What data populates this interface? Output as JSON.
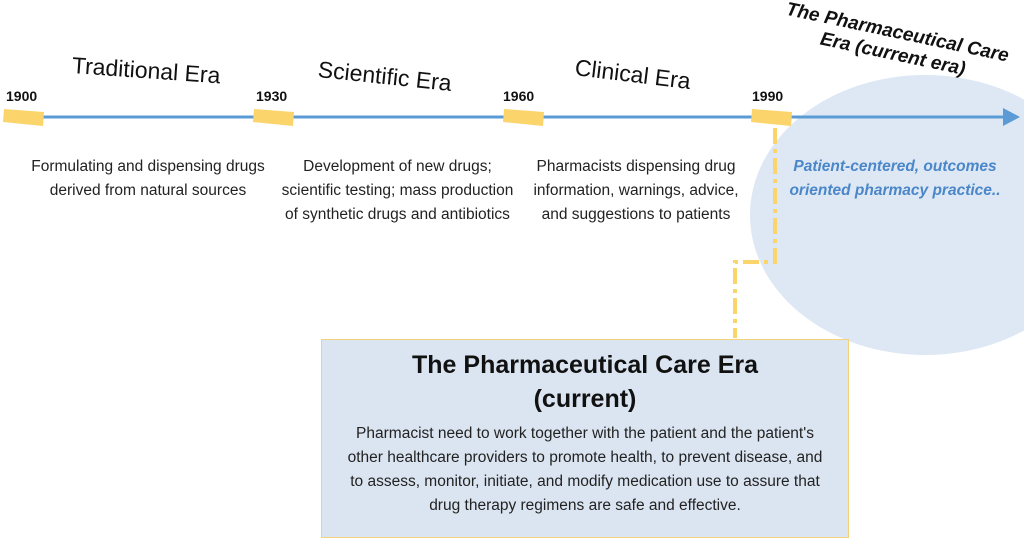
{
  "eras": [
    {
      "year": "1900",
      "title": "Traditional Era",
      "description": "Formulating and dispensing drugs derived from natural sources"
    },
    {
      "year": "1930",
      "title": "Scientific Era",
      "description": "Development of new drugs; scientific testing; mass production of synthetic drugs and antibiotics"
    },
    {
      "year": "1960",
      "title": "Clinical Era",
      "description": "Pharmacists dispensing drug information, warnings, advice, and suggestions to patients"
    },
    {
      "year": "1990",
      "title": "The Pharmaceutical Care Era (current era)",
      "description": "Patient-centered, outcomes oriented pharmacy practice.."
    }
  ],
  "detail": {
    "title_line1": "The Pharmaceutical Care Era",
    "title_line2": "(current)",
    "body": "Pharmacist need to work together with the patient and the patient's other healthcare providers to promote health, to prevent disease, and to assess, monitor, initiate, and modify medication use to assure that drug therapy regimens are safe and effective."
  },
  "colors": {
    "timeline": "#5b9bd5",
    "marker": "#fbd46b",
    "current_bubble": "#dde8f4",
    "current_text": "#4a86c8",
    "box_fill": "#dbe5f1"
  }
}
